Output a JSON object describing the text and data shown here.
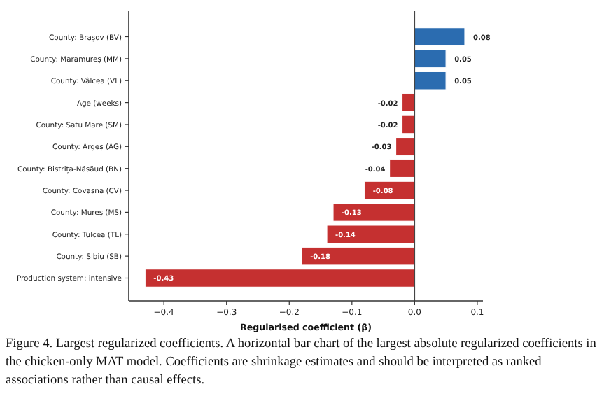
{
  "chart_data": {
    "type": "bar",
    "orientation": "horizontal",
    "xlabel": "Regularised coefficient (β)",
    "categories": [
      "County: Brașov (BV)",
      "County: Maramureș (MM)",
      "County: Vâlcea (VL)",
      "Age (weeks)",
      "County: Satu Mare (SM)",
      "County: Argeș (AG)",
      "County: Bistrița-Năsăud (BN)",
      "County: Covasna (CV)",
      "County: Mureș (MS)",
      "County: Tulcea (TL)",
      "County: Sibiu (SB)",
      "Production system: intensive"
    ],
    "values": [
      0.08,
      0.05,
      0.05,
      -0.02,
      -0.02,
      -0.03,
      -0.04,
      -0.08,
      -0.13,
      -0.14,
      -0.18,
      -0.43
    ],
    "colors": [
      "#2b6cb0",
      "#2b6cb0",
      "#2b6cb0",
      "#c53030",
      "#c53030",
      "#c53030",
      "#c53030",
      "#c53030",
      "#c53030",
      "#c53030",
      "#c53030",
      "#c53030"
    ],
    "xlim": [
      -0.456,
      0.109
    ],
    "xticks": [
      {
        "value": -0.4,
        "label": "−0.4"
      },
      {
        "value": -0.3,
        "label": "−0.3"
      },
      {
        "value": -0.2,
        "label": "−0.2"
      },
      {
        "value": -0.1,
        "label": "−0.1"
      },
      {
        "value": 0,
        "label": "0.0"
      },
      {
        "value": 0.1,
        "label": "0.1"
      }
    ],
    "data_labels": true,
    "annotations": [
      "Figure 4. Largest regularized coefficients. A horizontal bar chart of the largest absolute regularized coefficients in the chicken-only MAT model. Coefficients are shrinkage estimates and should be interpreted as ranked associations rather than causal effects."
    ]
  }
}
